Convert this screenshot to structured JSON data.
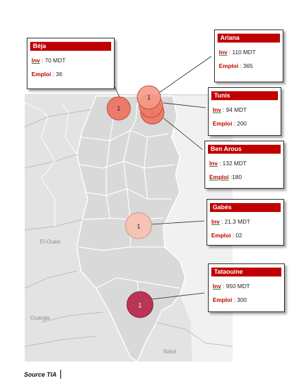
{
  "map": {
    "place_labels": [
      "El-Oued",
      "Ouargla",
      "Nalut"
    ],
    "marker_colors": {
      "beja": "#ee6f5c",
      "ariana": "#f59a88",
      "tunis": "#ef7b68",
      "ben_arous": "#ee6f5c",
      "gabes": "#f8c2b5",
      "tataouine": "#b83556"
    }
  },
  "markers": [
    {
      "key": "beja",
      "value": "1"
    },
    {
      "key": "ariana",
      "value": "1"
    },
    {
      "key": "tunis",
      "value": "1"
    },
    {
      "key": "ben_arous",
      "value": "1"
    },
    {
      "key": "gabes",
      "value": "1"
    },
    {
      "key": "tataouine",
      "value": "1"
    }
  ],
  "callouts": {
    "beja": {
      "title": "Béja",
      "inv_label": "Inv",
      "inv_value": " : 70 MDT",
      "emploi_label": "Emploi",
      "emploi_value": " : 36"
    },
    "ariana": {
      "title": "Ariana",
      "inv_label": "Inv",
      "inv_value": " : 110 MDT",
      "emploi_label": "Emploi",
      "emploi_value": " : 365"
    },
    "tunis": {
      "title": "Tunis",
      "inv_label": "Inv",
      "inv_value": " : 94 MDT",
      "emploi_label": "Emploi",
      "emploi_value": " : 200"
    },
    "ben_arous": {
      "title": "Ben Arous",
      "inv_label": "Inv",
      "inv_value": " : 132 MDT",
      "emploi_label": "Emploi",
      "emploi_value": " :180"
    },
    "gabes": {
      "title": "Gabés",
      "inv_label": "Inv",
      "inv_value": " : 21,3 MDT",
      "emploi_label": "Emploi",
      "emploi_value": " : 02"
    },
    "tataouine": {
      "title": "Tataouine",
      "inv_label": "Inv",
      "inv_value": " : 950 MDT",
      "emploi_label": "Emploi",
      "emploi_value": " : 300"
    }
  },
  "source": "Source TIA"
}
